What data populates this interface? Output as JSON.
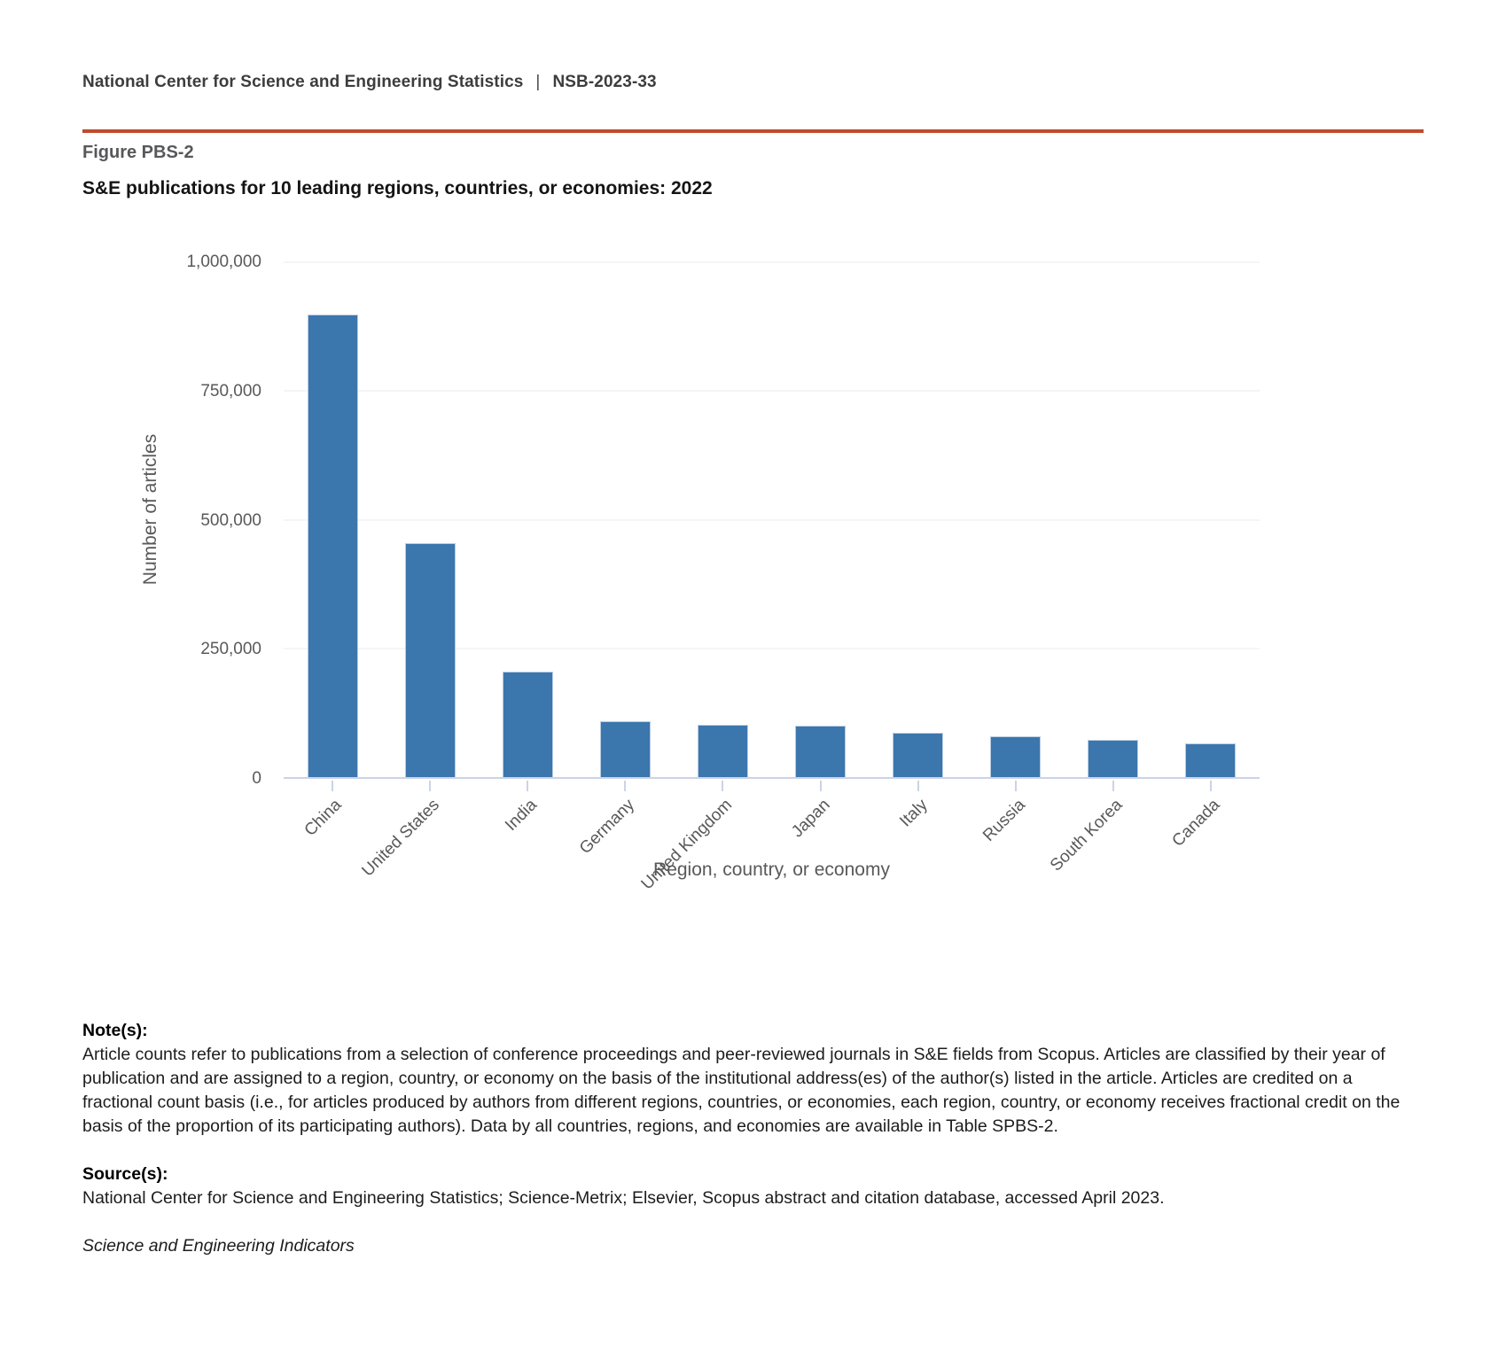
{
  "header": {
    "agency": "National Center for Science and Engineering Statistics",
    "separator": "|",
    "report_id": "NSB-2023-33",
    "rule_color": "#bf4b2b"
  },
  "figure": {
    "label": "Figure PBS-2",
    "title": "S&E publications for 10 leading regions, countries, or economies: 2022"
  },
  "chart_data": {
    "type": "bar",
    "title": "S&E publications for 10 leading regions, countries, or economies: 2022",
    "categories": [
      "China",
      "United States",
      "India",
      "Germany",
      "United Kingdom",
      "Japan",
      "Italy",
      "Russia",
      "South Korea",
      "Canada"
    ],
    "values": [
      898000,
      455000,
      205000,
      108000,
      101000,
      100000,
      86000,
      79000,
      72000,
      66000
    ],
    "xlabel": "Region, country, or economy",
    "ylabel": "Number of articles",
    "ylim": [
      0,
      1000000
    ],
    "yticks": [
      0,
      250000,
      500000,
      750000,
      1000000
    ],
    "grid": true,
    "legend": "none",
    "bar_color": "#3b76ad",
    "bar_border_color": "#b9cce3",
    "axis_color": "#ccd3e8",
    "gridline_color": "#ebebeb",
    "tick_label_color": "#595959"
  },
  "notes": {
    "heading": "Note(s):",
    "body": "Article counts refer to publications from a selection of conference proceedings and peer-reviewed journals in S&E fields from Scopus. Articles are classified by their year of publication and are assigned to a region, country, or economy on the basis of the institutional address(es) of the author(s) listed in the article. Articles are credited on a fractional count basis (i.e., for articles produced by authors from different regions, countries, or economies, each region, country, or economy receives fractional credit on the basis of the proportion of its participating authors). Data by all countries, regions, and economies are available in Table SPBS-2."
  },
  "sources": {
    "heading": "Source(s):",
    "body": "National Center for Science and Engineering Statistics; Science-Metrix; Elsevier, Scopus abstract and citation database, accessed April 2023."
  },
  "footer": {
    "publication": "Science and Engineering Indicators"
  }
}
